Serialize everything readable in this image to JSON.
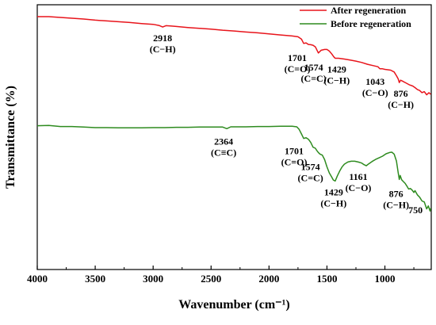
{
  "chart_data": {
    "type": "line",
    "title": "",
    "xlabel": "Wavenumber (cm⁻¹)",
    "ylabel": "Transmittance (%)",
    "xlim": [
      4000,
      600
    ],
    "x_reversed": true,
    "xticks": [
      "4000",
      "3500",
      "3000",
      "2500",
      "2000",
      "1500",
      "1000"
    ],
    "y_ticks_shown": false,
    "legend_position": "top-right",
    "series": [
      {
        "name": "After regeneration",
        "color": "#e8141b",
        "points": [
          [
            4000,
            95.5
          ],
          [
            3900,
            95.5
          ],
          [
            3800,
            95.2
          ],
          [
            3700,
            94.9
          ],
          [
            3600,
            94.6
          ],
          [
            3500,
            94.2
          ],
          [
            3400,
            93.9
          ],
          [
            3300,
            93.6
          ],
          [
            3200,
            93.3
          ],
          [
            3100,
            92.9
          ],
          [
            3000,
            92.6
          ],
          [
            2950,
            92.2
          ],
          [
            2918,
            91.6
          ],
          [
            2890,
            92.1
          ],
          [
            2850,
            92.0
          ],
          [
            2800,
            91.8
          ],
          [
            2700,
            91.4
          ],
          [
            2600,
            91.1
          ],
          [
            2500,
            90.8
          ],
          [
            2400,
            90.4
          ],
          [
            2300,
            90.1
          ],
          [
            2200,
            89.7
          ],
          [
            2100,
            89.4
          ],
          [
            2000,
            89.0
          ],
          [
            1900,
            88.6
          ],
          [
            1800,
            88.2
          ],
          [
            1750,
            87.9
          ],
          [
            1720,
            87.0
          ],
          [
            1701,
            85.4
          ],
          [
            1680,
            85.6
          ],
          [
            1660,
            85.0
          ],
          [
            1640,
            84.9
          ],
          [
            1620,
            84.7
          ],
          [
            1600,
            84.1
          ],
          [
            1574,
            81.8
          ],
          [
            1550,
            82.8
          ],
          [
            1520,
            83.1
          ],
          [
            1500,
            83.1
          ],
          [
            1480,
            82.5
          ],
          [
            1460,
            81.5
          ],
          [
            1440,
            80.3
          ],
          [
            1429,
            79.8
          ],
          [
            1400,
            79.8
          ],
          [
            1350,
            79.5
          ],
          [
            1300,
            79.1
          ],
          [
            1250,
            78.7
          ],
          [
            1200,
            78.2
          ],
          [
            1150,
            77.5
          ],
          [
            1100,
            77.0
          ],
          [
            1060,
            76.6
          ],
          [
            1043,
            75.8
          ],
          [
            1020,
            75.8
          ],
          [
            1000,
            75.6
          ],
          [
            950,
            75.3
          ],
          [
            920,
            74.6
          ],
          [
            900,
            73.2
          ],
          [
            885,
            72.0
          ],
          [
            876,
            70.6
          ],
          [
            865,
            71.5
          ],
          [
            850,
            71.2
          ],
          [
            820,
            70.5
          ],
          [
            790,
            69.8
          ],
          [
            760,
            69.3
          ],
          [
            740,
            68.7
          ],
          [
            720,
            68.0
          ],
          [
            700,
            67.6
          ],
          [
            680,
            66.8
          ],
          [
            660,
            67.2
          ],
          [
            640,
            66.0
          ],
          [
            620,
            66.8
          ],
          [
            605,
            66.2
          ]
        ]
      },
      {
        "name": "Before regeneration",
        "color": "#2e8b1f",
        "points": [
          [
            4000,
            54.3
          ],
          [
            3900,
            54.4
          ],
          [
            3800,
            54.0
          ],
          [
            3700,
            54.0
          ],
          [
            3600,
            53.8
          ],
          [
            3500,
            53.6
          ],
          [
            3400,
            53.6
          ],
          [
            3300,
            53.5
          ],
          [
            3200,
            53.5
          ],
          [
            3100,
            53.5
          ],
          [
            3000,
            53.6
          ],
          [
            2900,
            53.6
          ],
          [
            2800,
            53.7
          ],
          [
            2700,
            53.7
          ],
          [
            2600,
            53.8
          ],
          [
            2500,
            53.8
          ],
          [
            2400,
            53.8
          ],
          [
            2364,
            53.2
          ],
          [
            2330,
            53.9
          ],
          [
            2300,
            53.9
          ],
          [
            2200,
            53.9
          ],
          [
            2100,
            54.0
          ],
          [
            2000,
            54.0
          ],
          [
            1900,
            54.1
          ],
          [
            1800,
            54.1
          ],
          [
            1760,
            53.9
          ],
          [
            1740,
            52.9
          ],
          [
            1720,
            51.2
          ],
          [
            1701,
            49.5
          ],
          [
            1680,
            49.8
          ],
          [
            1660,
            49.2
          ],
          [
            1640,
            48.0
          ],
          [
            1620,
            46.2
          ],
          [
            1600,
            45.8
          ],
          [
            1590,
            45.1
          ],
          [
            1574,
            44.2
          ],
          [
            1560,
            43.6
          ],
          [
            1540,
            43.2
          ],
          [
            1520,
            41.5
          ],
          [
            1500,
            38.8
          ],
          [
            1480,
            36.5
          ],
          [
            1460,
            35.0
          ],
          [
            1445,
            33.8
          ],
          [
            1429,
            33.4
          ],
          [
            1410,
            35.4
          ],
          [
            1390,
            37.2
          ],
          [
            1370,
            38.7
          ],
          [
            1350,
            39.8
          ],
          [
            1320,
            40.6
          ],
          [
            1290,
            40.9
          ],
          [
            1260,
            40.9
          ],
          [
            1230,
            40.6
          ],
          [
            1200,
            40.2
          ],
          [
            1180,
            39.6
          ],
          [
            1161,
            39.2
          ],
          [
            1140,
            39.9
          ],
          [
            1110,
            40.8
          ],
          [
            1080,
            41.6
          ],
          [
            1050,
            42.2
          ],
          [
            1020,
            42.8
          ],
          [
            990,
            43.7
          ],
          [
            960,
            44.2
          ],
          [
            940,
            44.3
          ],
          [
            920,
            43.6
          ],
          [
            900,
            41.0
          ],
          [
            885,
            36.6
          ],
          [
            876,
            34.0
          ],
          [
            868,
            35.5
          ],
          [
            855,
            33.9
          ],
          [
            840,
            33.2
          ],
          [
            825,
            32.5
          ],
          [
            810,
            31.5
          ],
          [
            795,
            30.4
          ],
          [
            780,
            30.6
          ],
          [
            765,
            30.0
          ],
          [
            750,
            29.1
          ],
          [
            740,
            29.8
          ],
          [
            720,
            28.2
          ],
          [
            700,
            27.3
          ],
          [
            680,
            25.9
          ],
          [
            660,
            25.5
          ],
          [
            640,
            22.9
          ],
          [
            625,
            24.0
          ],
          [
            610,
            22.1
          ],
          [
            605,
            23.2
          ]
        ]
      }
    ],
    "annotations": [
      {
        "series": 0,
        "label": "2918",
        "group": "(C−H)",
        "x": 2918,
        "y": 91.6
      },
      {
        "series": 0,
        "label": "1701",
        "group": "(C=O)",
        "x": 1701,
        "y": 85.4
      },
      {
        "series": 0,
        "label": "1574",
        "group": "(C=C)",
        "x": 1574,
        "y": 81.8
      },
      {
        "series": 0,
        "label": "1429",
        "group": "(C−H)",
        "x": 1429,
        "y": 79.8
      },
      {
        "series": 0,
        "label": "1043",
        "group": "(C−O)",
        "x": 1043,
        "y": 75.8
      },
      {
        "series": 0,
        "label": "876",
        "group": "(C−H)",
        "x": 876,
        "y": 70.6
      },
      {
        "series": 1,
        "label": "2364",
        "group": "(C≡C)",
        "x": 2364,
        "y": 53.2
      },
      {
        "series": 1,
        "label": "1701",
        "group": "(C=O)",
        "x": 1701,
        "y": 49.5
      },
      {
        "series": 1,
        "label": "1574",
        "group": "(C=C)",
        "x": 1574,
        "y": 44.2
      },
      {
        "series": 1,
        "label": "1429",
        "group": "(C−H)",
        "x": 1429,
        "y": 33.4
      },
      {
        "series": 1,
        "label": "1161",
        "group": "(C−O)",
        "x": 1161,
        "y": 39.2
      },
      {
        "series": 1,
        "label": "876",
        "group": "(C−H)",
        "x": 876,
        "y": 34.0
      },
      {
        "series": 1,
        "label": "750",
        "group": "",
        "x": 750,
        "y": 29.1
      }
    ]
  }
}
